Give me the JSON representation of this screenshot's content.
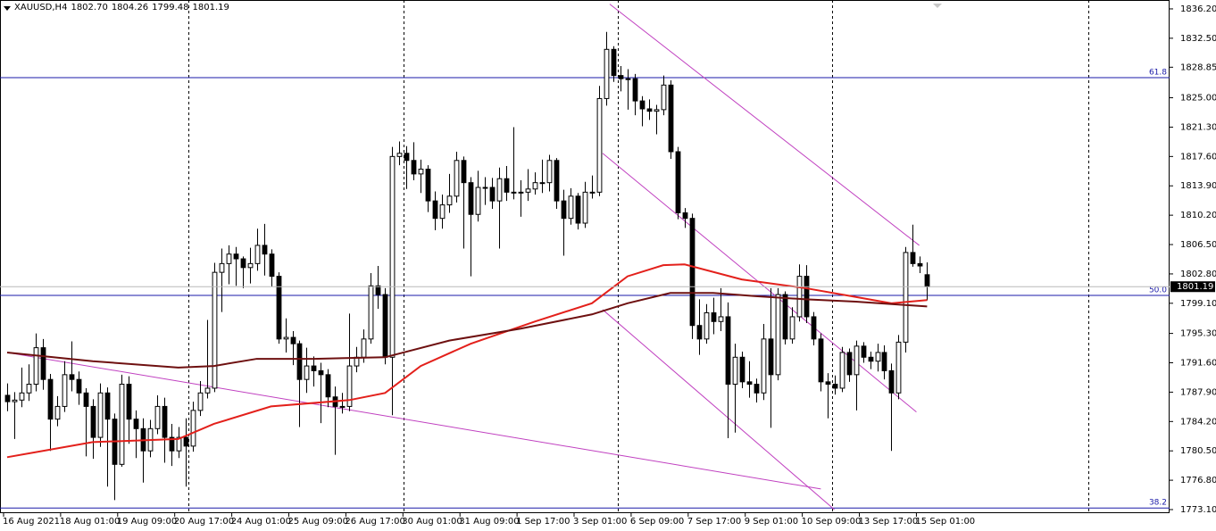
{
  "chart_data": {
    "type": "candlestick",
    "symbol": "XAUUSD,H4",
    "last_labels": {
      "open": "1802.70",
      "high": "1804.26",
      "low": "1799.48",
      "close": "1801.19"
    },
    "up_color": "#ffffff",
    "down_color": "#000000",
    "outline_color": "#000000",
    "xlim": [
      -1,
      163
    ],
    "ylim": [
      1772.65,
      1837.32
    ],
    "xticks": [
      {
        "value": 0,
        "label": "16 Aug 2021"
      },
      {
        "value": 8,
        "label": "18 Aug 01:00"
      },
      {
        "value": 16,
        "label": "19 Aug 09:00"
      },
      {
        "value": 24,
        "label": "20 Aug 17:00"
      },
      {
        "value": 32,
        "label": "24 Aug 01:00"
      },
      {
        "value": 40,
        "label": "25 Aug 09:00"
      },
      {
        "value": 48,
        "label": "26 Aug 17:00"
      },
      {
        "value": 56,
        "label": "30 Aug 01:00"
      },
      {
        "value": 64,
        "label": "31 Aug 09:00"
      },
      {
        "value": 72,
        "label": "1 Sep 17:00"
      },
      {
        "value": 80,
        "label": "3 Sep 01:00"
      },
      {
        "value": 88,
        "label": "6 Sep 09:00"
      },
      {
        "value": 96,
        "label": "7 Sep 17:00"
      },
      {
        "value": 104,
        "label": "9 Sep 01:00"
      },
      {
        "value": 112,
        "label": "10 Sep 09:00"
      },
      {
        "value": 120,
        "label": "13 Sep 17:00"
      },
      {
        "value": 128,
        "label": "15 Sep 01:00"
      }
    ],
    "yticks": [
      {
        "value": 1836.2,
        "label": "1836.20"
      },
      {
        "value": 1832.5,
        "label": "1832.50"
      },
      {
        "value": 1828.85,
        "label": "1828.85"
      },
      {
        "value": 1825.0,
        "label": "1825.00"
      },
      {
        "value": 1821.3,
        "label": "1821.30"
      },
      {
        "value": 1817.6,
        "label": "1817.60"
      },
      {
        "value": 1813.9,
        "label": "1813.90"
      },
      {
        "value": 1810.2,
        "label": "1810.20"
      },
      {
        "value": 1806.5,
        "label": "1806.50"
      },
      {
        "value": 1802.8,
        "label": "1802.80"
      },
      {
        "value": 1799.1,
        "label": "1799.10"
      },
      {
        "value": 1795.3,
        "label": "1795.30"
      },
      {
        "value": 1791.6,
        "label": "1791.60"
      },
      {
        "value": 1787.9,
        "label": "1787.90"
      },
      {
        "value": 1784.2,
        "label": "1784.20"
      },
      {
        "value": 1780.5,
        "label": "1780.50"
      },
      {
        "value": 1776.8,
        "label": "1776.80"
      },
      {
        "value": 1773.1,
        "label": "1773.10"
      }
    ],
    "open": [
      1787.5,
      1786.7,
      1786.9,
      1787.8,
      1788.9,
      1793.5,
      1789.5,
      1784.5,
      1786.1,
      1790.1,
      1789.5,
      1787.8,
      1786.1,
      1782.2,
      1787.8,
      1784.5,
      1778.8,
      1788.9,
      1784.5,
      1783.3,
      1780.5,
      1783.3,
      1786.1,
      1782.2,
      1780.5,
      1782.2,
      1781.1,
      1785.6,
      1787.8,
      1788.4,
      1803.0,
      1804.1,
      1805.3,
      1804.7,
      1803.6,
      1804.1,
      1806.4,
      1805.3,
      1802.5,
      1794.6,
      1794.8,
      1794.0,
      1789.5,
      1791.2,
      1790.6,
      1790.1,
      1787.3,
      1786.1,
      1786.1,
      1791.2,
      1792.3,
      1794.6,
      1801.3,
      1800.2,
      1792.3,
      1817.6,
      1818.0,
      1817.1,
      1815.4,
      1816.0,
      1812.0,
      1809.8,
      1811.5,
      1812.6,
      1817.1,
      1814.3,
      1810.3,
      1813.7,
      1813.7,
      1812.0,
      1814.8,
      1813.1,
      1813.1,
      1813.1,
      1813.5,
      1814.3,
      1814.3,
      1817.1,
      1812.0,
      1809.8,
      1812.6,
      1809.2,
      1813.1,
      1813.1,
      1824.9,
      1831.1,
      1827.8,
      1827.4,
      1827.4,
      1824.6,
      1823.6,
      1823.3,
      1823.5,
      1826.6,
      1818.2,
      1810.5,
      1809.8,
      1796.3,
      1794.6,
      1797.9,
      1796.8,
      1797.4,
      1788.9,
      1792.3,
      1789.2,
      1788.9,
      1787.8,
      1794.6,
      1790.1,
      1800.2,
      1794.6,
      1797.4,
      1802.5,
      1797.4,
      1794.6,
      1789.2,
      1788.9,
      1788.4,
      1792.9,
      1790.1,
      1793.7,
      1792.3,
      1791.8,
      1792.9,
      1790.6,
      1787.8,
      1794.2,
      1805.5,
      1804.1,
      1802.7
    ],
    "high": [
      1789.0,
      1787.9,
      1791.0,
      1791.4,
      1795.3,
      1794.6,
      1790.2,
      1787.4,
      1791.8,
      1794.3,
      1790.5,
      1788.4,
      1787.0,
      1789.0,
      1788.5,
      1785.2,
      1790.1,
      1789.9,
      1785.6,
      1784.6,
      1784.4,
      1787.5,
      1787.2,
      1783.9,
      1783.5,
      1784.6,
      1786.7,
      1789.3,
      1797.0,
      1804.2,
      1806.0,
      1806.4,
      1806.2,
      1805.0,
      1806.1,
      1808.5,
      1809.1,
      1805.9,
      1803.0,
      1797.2,
      1795.6,
      1794.4,
      1793.5,
      1792.4,
      1791.6,
      1790.8,
      1788.6,
      1787.8,
      1797.8,
      1793.6,
      1795.8,
      1802.9,
      1803.8,
      1801.0,
      1818.8,
      1819.5,
      1818.9,
      1819.4,
      1817.2,
      1816.5,
      1813.2,
      1812.8,
      1815.4,
      1818.2,
      1817.6,
      1815.0,
      1815.8,
      1815.0,
      1814.9,
      1816.2,
      1816.4,
      1821.3,
      1814.6,
      1816.0,
      1815.6,
      1817.2,
      1817.8,
      1817.4,
      1813.4,
      1813.6,
      1813.0,
      1814.4,
      1815.2,
      1826.5,
      1833.3,
      1831.5,
      1829.0,
      1828.6,
      1828.0,
      1825.2,
      1824.8,
      1824.1,
      1827.8,
      1827.2,
      1818.8,
      1811.1,
      1810.4,
      1799.6,
      1799.0,
      1799.8,
      1801.0,
      1799.2,
      1794.0,
      1793.0,
      1791.8,
      1789.6,
      1796.5,
      1801.0,
      1801.0,
      1800.6,
      1798.6,
      1804.0,
      1803.9,
      1798.0,
      1795.3,
      1790.3,
      1790.0,
      1793.6,
      1793.4,
      1794.4,
      1794.2,
      1793.0,
      1794.0,
      1793.8,
      1791.5,
      1795.1,
      1806.2,
      1809.0,
      1805.0,
      1804.26
    ],
    "low": [
      1785.5,
      1782.0,
      1786.0,
      1786.8,
      1788.0,
      1788.2,
      1780.5,
      1783.6,
      1785.4,
      1788.0,
      1786.3,
      1779.8,
      1779.5,
      1781.0,
      1776.0,
      1774.3,
      1778.5,
      1781.4,
      1779.6,
      1776.5,
      1779.7,
      1782.6,
      1779.0,
      1778.6,
      1779.6,
      1776.0,
      1780.4,
      1784.9,
      1787.1,
      1787.9,
      1798.0,
      1801.5,
      1801.3,
      1801.0,
      1801.6,
      1803.2,
      1802.6,
      1801.2,
      1794.0,
      1792.9,
      1791.3,
      1783.5,
      1787.8,
      1788.6,
      1784.0,
      1786.0,
      1780.0,
      1785.2,
      1785.5,
      1790.4,
      1791.6,
      1794.0,
      1798.4,
      1791.4,
      1785.0,
      1816.5,
      1813.5,
      1814.6,
      1813.0,
      1810.6,
      1808.3,
      1808.5,
      1810.5,
      1811.8,
      1806.0,
      1802.5,
      1809.4,
      1811.5,
      1811.0,
      1806.0,
      1812.0,
      1812.2,
      1810.0,
      1812.0,
      1812.8,
      1813.0,
      1813.2,
      1811.0,
      1805.1,
      1809.0,
      1808.4,
      1808.6,
      1812.3,
      1812.6,
      1824.0,
      1827.0,
      1825.8,
      1823.5,
      1822.8,
      1821.4,
      1822.2,
      1820.4,
      1822.8,
      1817.3,
      1809.7,
      1808.6,
      1794.6,
      1792.6,
      1794.0,
      1795.2,
      1795.6,
      1782.1,
      1782.8,
      1788.4,
      1787.2,
      1786.6,
      1786.9,
      1783.4,
      1789.4,
      1793.9,
      1794.0,
      1796.8,
      1796.6,
      1793.8,
      1788.0,
      1784.6,
      1787.6,
      1787.9,
      1789.2,
      1785.6,
      1791.6,
      1790.8,
      1790.5,
      1789.5,
      1780.5,
      1787.0,
      1792.9,
      1803.7,
      1802.9,
      1799.48
    ],
    "close": [
      1786.7,
      1786.9,
      1787.8,
      1788.9,
      1793.5,
      1789.5,
      1784.5,
      1786.1,
      1790.1,
      1789.5,
      1787.8,
      1786.1,
      1782.2,
      1787.8,
      1784.5,
      1778.8,
      1788.9,
      1784.5,
      1783.3,
      1780.5,
      1783.3,
      1786.1,
      1782.2,
      1780.5,
      1782.2,
      1781.1,
      1785.6,
      1787.8,
      1788.4,
      1803.0,
      1804.1,
      1805.3,
      1804.7,
      1803.6,
      1804.1,
      1806.4,
      1805.3,
      1802.5,
      1794.6,
      1794.8,
      1794.0,
      1789.5,
      1791.2,
      1790.6,
      1790.1,
      1787.3,
      1786.1,
      1786.1,
      1791.2,
      1792.3,
      1794.6,
      1801.3,
      1800.2,
      1792.3,
      1817.6,
      1818.0,
      1817.1,
      1815.4,
      1816.0,
      1812.0,
      1809.8,
      1811.5,
      1812.6,
      1817.1,
      1814.3,
      1810.3,
      1813.7,
      1813.7,
      1812.0,
      1814.8,
      1813.1,
      1813.1,
      1813.1,
      1813.5,
      1814.3,
      1814.3,
      1817.1,
      1812.0,
      1809.8,
      1812.6,
      1809.2,
      1813.1,
      1813.1,
      1824.9,
      1831.1,
      1827.8,
      1827.4,
      1827.4,
      1824.6,
      1823.6,
      1823.3,
      1823.5,
      1826.6,
      1818.2,
      1810.5,
      1809.8,
      1796.3,
      1794.6,
      1797.9,
      1796.8,
      1797.4,
      1788.9,
      1792.3,
      1789.2,
      1788.9,
      1787.8,
      1794.6,
      1790.1,
      1800.2,
      1794.6,
      1797.4,
      1802.5,
      1797.4,
      1794.6,
      1789.2,
      1788.9,
      1788.4,
      1792.9,
      1790.1,
      1793.7,
      1792.3,
      1791.8,
      1792.9,
      1790.6,
      1787.8,
      1794.2,
      1805.5,
      1804.1,
      1803.8,
      1801.19
    ],
    "indicators": [
      {
        "color": "#e3201b",
        "x": [
          0,
          12,
          24,
          29,
          37,
          48,
          53,
          58,
          65,
          74,
          82,
          87,
          92,
          95,
          103,
          112,
          119,
          124,
          129
        ],
        "values": [
          1779.7,
          1781.6,
          1782.0,
          1783.9,
          1786.1,
          1786.9,
          1787.8,
          1791.2,
          1794.0,
          1796.8,
          1799.1,
          1802.5,
          1803.9,
          1804.0,
          1802.1,
          1801.0,
          1799.9,
          1799.1,
          1799.5
        ]
      },
      {
        "color": "#6e1010",
        "x": [
          0,
          12,
          24,
          29,
          35,
          43,
          53,
          62,
          72,
          82,
          87,
          93,
          99,
          105,
          112,
          119,
          129
        ],
        "values": [
          1792.9,
          1791.8,
          1791.0,
          1791.2,
          1792.1,
          1792.1,
          1792.3,
          1794.4,
          1795.9,
          1797.7,
          1799.1,
          1800.4,
          1800.4,
          1800.0,
          1799.6,
          1799.3,
          1798.7
        ]
      }
    ],
    "trendline_color": "#c040c0",
    "trendlines": [
      {
        "x": [
          84.5,
          127.9
        ],
        "values": [
          1836.8,
          1806.4
        ]
      },
      {
        "x": [
          83.5,
          127.5
        ],
        "values": [
          1818.0,
          1785.4
        ]
      },
      {
        "x": [
          83.5,
          116
        ],
        "values": [
          1798.3,
          1773.1
        ]
      },
      {
        "x": [
          0,
          114.1
        ],
        "values": [
          1792.9,
          1775.7
        ]
      }
    ],
    "level_color": "#1a1aa8",
    "levels": [
      {
        "label": "61.8",
        "value": 1827.54
      },
      {
        "label": "50.0",
        "value": 1800.09
      },
      {
        "label": "38.2",
        "value": 1773.3
      }
    ],
    "price_line_color": "#b8b8b8"
  }
}
